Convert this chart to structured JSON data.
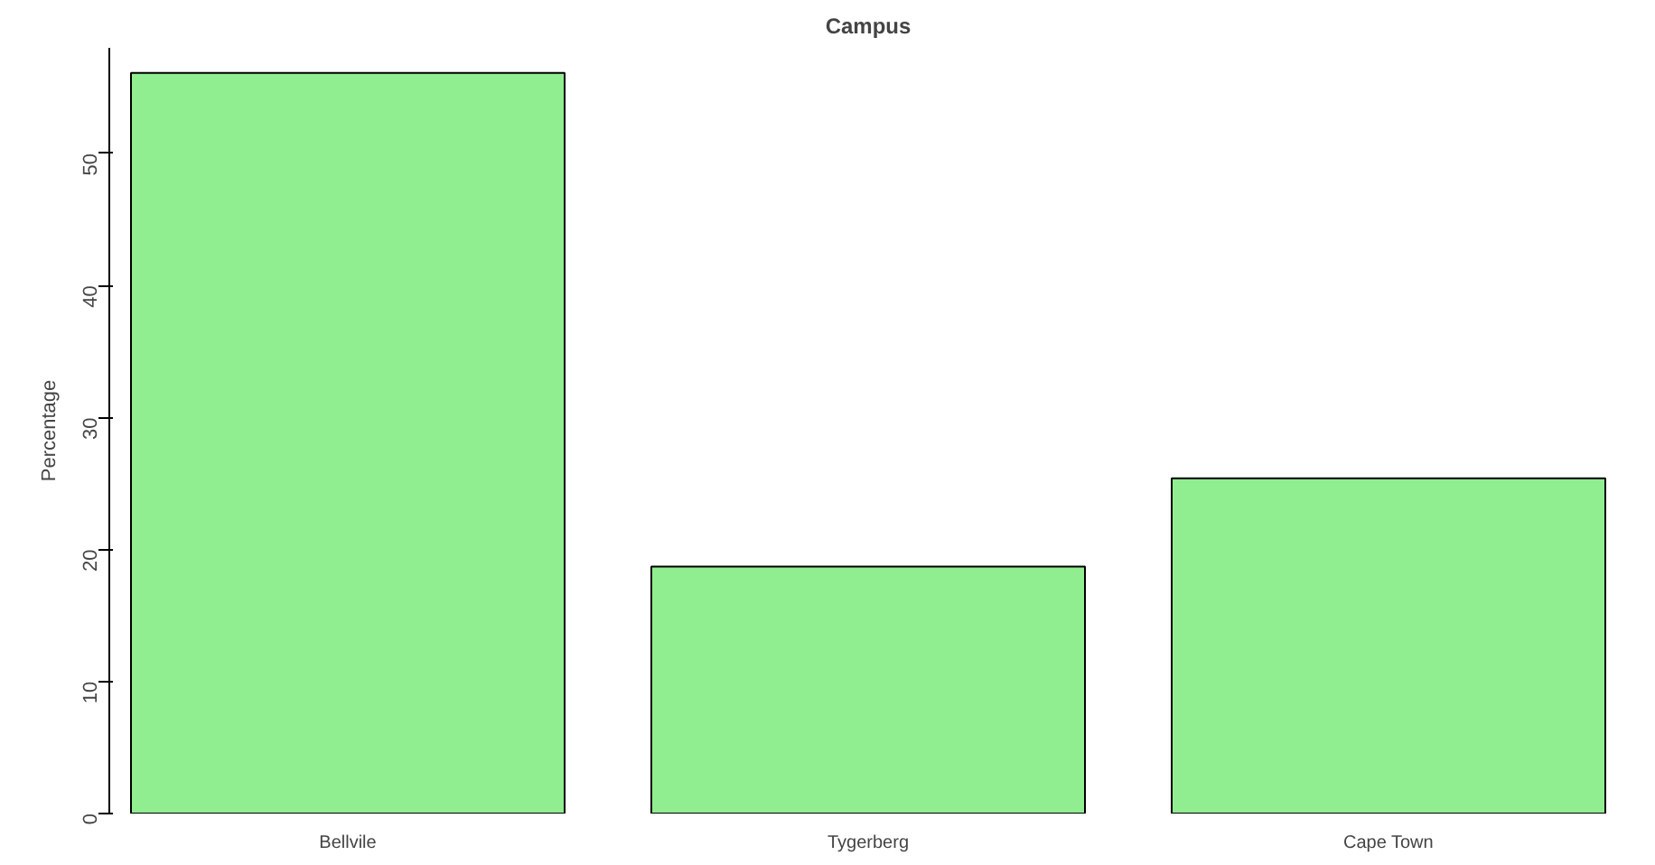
{
  "chart_data": {
    "type": "bar",
    "title": "Campus",
    "ylabel": "Percentage",
    "categories": [
      "Bellvile",
      "Tygerberg",
      "Cape Town"
    ],
    "values": [
      56.1,
      18.7,
      25.4
    ],
    "color": "#90ee90",
    "ylim": [
      0,
      58
    ],
    "yticks": [
      0,
      10,
      20,
      30,
      40,
      50
    ],
    "grid": false
  }
}
